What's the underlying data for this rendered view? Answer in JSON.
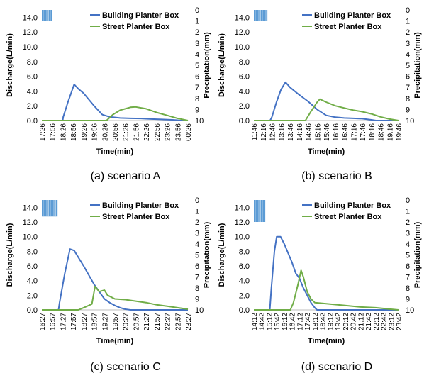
{
  "chart_data": [
    {
      "type": "line",
      "caption": "(a) scenario A",
      "ylabel": "Discharge(L/min)",
      "y2label": "Precipitation(mm)",
      "xlabel": "Time(min)",
      "ylim": [
        0,
        15
      ],
      "yticks": [
        "0.0",
        "2.0",
        "4.0",
        "6.0",
        "8.0",
        "10.0",
        "12.0",
        "14.0"
      ],
      "y2lim": [
        0,
        10
      ],
      "y2ticks": [
        "0",
        "1",
        "2",
        "3",
        "4",
        "5",
        "6",
        "7",
        "8",
        "9",
        "10"
      ],
      "x_categories": [
        "17:26",
        "17:56",
        "18:26",
        "18:56",
        "19:26",
        "19:56",
        "20:26",
        "20:56",
        "21:26",
        "21:56",
        "22:26",
        "22:56",
        "23:26",
        "23:56",
        "00:26"
      ],
      "legend": [
        "Building Planter Box",
        "Street Planter Box"
      ],
      "precipitation_bar": {
        "start_index": 0,
        "end_index": 1,
        "depth_mm": 1.0
      },
      "series": [
        {
          "name": "Building Planter Box",
          "color": "#4472c4",
          "points": [
            [
              0,
              0
            ],
            [
              2,
              0
            ],
            [
              2.05,
              0.5
            ],
            [
              2.5,
              2.5
            ],
            [
              3.1,
              4.9
            ],
            [
              3.5,
              4.3
            ],
            [
              4,
              3.7
            ],
            [
              5,
              2.0
            ],
            [
              5.8,
              0.8
            ],
            [
              6.5,
              0.5
            ],
            [
              7.5,
              0.35
            ],
            [
              8.5,
              0.3
            ],
            [
              9.5,
              0.28
            ],
            [
              10.5,
              0.2
            ],
            [
              11.5,
              0.15
            ],
            [
              12.5,
              0.1
            ],
            [
              13,
              0.05
            ],
            [
              13.2,
              0
            ],
            [
              14,
              0
            ]
          ]
        },
        {
          "name": "Street Planter Box",
          "color": "#70ad47",
          "points": [
            [
              0,
              0
            ],
            [
              6.2,
              0
            ],
            [
              6.8,
              0.8
            ],
            [
              7.5,
              1.4
            ],
            [
              8.5,
              1.8
            ],
            [
              9,
              1.85
            ],
            [
              10,
              1.6
            ],
            [
              11,
              1.1
            ],
            [
              12,
              0.7
            ],
            [
              13,
              0.3
            ],
            [
              14,
              0
            ]
          ]
        }
      ]
    },
    {
      "type": "line",
      "caption": "(b) scenario B",
      "ylabel": "Discharge(L/min)",
      "y2label": "Precipitation(mm)",
      "xlabel": "Time(min)",
      "ylim": [
        0,
        15
      ],
      "yticks": [
        "0.0",
        "2.0",
        "4.0",
        "6.0",
        "8.0",
        "10.0",
        "12.0",
        "14.0"
      ],
      "y2lim": [
        0,
        10
      ],
      "y2ticks": [
        "0",
        "1",
        "2",
        "3",
        "4",
        "5",
        "6",
        "7",
        "8",
        "9",
        "10"
      ],
      "x_categories": [
        "11:46",
        "12:16",
        "12:46",
        "13:16",
        "13:46",
        "14:16",
        "14:46",
        "15:16",
        "15:46",
        "16:16",
        "16:46",
        "17:16",
        "17:46",
        "18:16",
        "18:46",
        "19:16",
        "19:46"
      ],
      "legend": [
        "Building Planter Box",
        "Street Planter Box"
      ],
      "precipitation_bar": {
        "start_index": 0,
        "end_index": 1.5,
        "depth_mm": 1.0
      },
      "series": [
        {
          "name": "Building Planter Box",
          "color": "#4472c4",
          "points": [
            [
              0,
              0
            ],
            [
              1.8,
              0
            ],
            [
              2.0,
              0.5
            ],
            [
              2.5,
              2.5
            ],
            [
              3.0,
              4.2
            ],
            [
              3.5,
              5.2
            ],
            [
              4,
              4.5
            ],
            [
              5,
              3.5
            ],
            [
              6,
              2.6
            ],
            [
              7,
              1.5
            ],
            [
              8,
              0.7
            ],
            [
              9,
              0.45
            ],
            [
              10,
              0.35
            ],
            [
              11,
              0.3
            ],
            [
              12,
              0.25
            ],
            [
              13,
              0.1
            ],
            [
              13.5,
              0
            ],
            [
              16,
              0
            ]
          ]
        },
        {
          "name": "Street Planter Box",
          "color": "#70ad47",
          "points": [
            [
              0,
              0
            ],
            [
              5.7,
              0
            ],
            [
              6.3,
              1.2
            ],
            [
              7,
              2.5
            ],
            [
              7.3,
              2.9
            ],
            [
              8,
              2.5
            ],
            [
              9,
              2.0
            ],
            [
              10,
              1.7
            ],
            [
              11,
              1.4
            ],
            [
              12,
              1.2
            ],
            [
              13,
              0.9
            ],
            [
              14,
              0.5
            ],
            [
              15,
              0.2
            ],
            [
              16,
              0
            ]
          ]
        }
      ]
    },
    {
      "type": "line",
      "caption": "(c) scenario C",
      "ylabel": "Discharge(L/min)",
      "y2label": "Precipitation(mm)",
      "xlabel": "Time(min)",
      "ylim": [
        0,
        15
      ],
      "yticks": [
        "0.0",
        "2.0",
        "4.0",
        "6.0",
        "8.0",
        "10.0",
        "12.0",
        "14.0"
      ],
      "y2lim": [
        0,
        10
      ],
      "y2ticks": [
        "0",
        "1",
        "2",
        "3",
        "4",
        "5",
        "6",
        "7",
        "8",
        "9",
        "10"
      ],
      "x_categories": [
        "16:27",
        "16:57",
        "17:27",
        "17:57",
        "18:27",
        "18:57",
        "19:27",
        "19:57",
        "20:27",
        "20:57",
        "21:27",
        "21:57",
        "22:27",
        "22:57",
        "23:27"
      ],
      "legend": [
        "Building Planter Box",
        "Street Planter Box"
      ],
      "precipitation_bar": {
        "start_index": 0,
        "end_index": 1.5,
        "depth_mm": 1.5
      },
      "series": [
        {
          "name": "Building Planter Box",
          "color": "#4472c4",
          "points": [
            [
              0,
              0
            ],
            [
              1.6,
              0
            ],
            [
              1.7,
              1.0
            ],
            [
              2.2,
              5.0
            ],
            [
              2.7,
              8.3
            ],
            [
              3.1,
              8.1
            ],
            [
              4,
              6.0
            ],
            [
              5,
              3.5
            ],
            [
              5.5,
              2.5
            ],
            [
              6,
              1.5
            ],
            [
              6.5,
              1.0
            ],
            [
              7,
              0.6
            ],
            [
              7.5,
              0.3
            ],
            [
              8,
              0.1
            ],
            [
              8.5,
              0
            ],
            [
              14,
              0
            ]
          ]
        },
        {
          "name": "Street Planter Box",
          "color": "#70ad47",
          "points": [
            [
              0,
              0
            ],
            [
              3.5,
              0
            ],
            [
              4,
              0.3
            ],
            [
              4.8,
              0.8
            ],
            [
              5.1,
              3.2
            ],
            [
              5.5,
              2.5
            ],
            [
              6,
              2.7
            ],
            [
              6.3,
              2.0
            ],
            [
              7,
              1.5
            ],
            [
              8,
              1.4
            ],
            [
              9,
              1.2
            ],
            [
              10,
              1.0
            ],
            [
              11,
              0.7
            ],
            [
              12,
              0.5
            ],
            [
              13,
              0.3
            ],
            [
              14,
              0.1
            ]
          ]
        }
      ]
    },
    {
      "type": "line",
      "caption": "(d) scenario D",
      "ylabel": "Discharge(L/min)",
      "y2label": "Precipitation(mm)",
      "xlabel": "Time(min)",
      "ylim": [
        0,
        15
      ],
      "yticks": [
        "0.0",
        "2.0",
        "4.0",
        "6.0",
        "8.0",
        "10.0",
        "12.0",
        "14.0"
      ],
      "y2lim": [
        0,
        10
      ],
      "y2ticks": [
        "0",
        "1",
        "2",
        "3",
        "4",
        "5",
        "6",
        "7",
        "8",
        "9",
        "10"
      ],
      "x_categories": [
        "14:12",
        "14:42",
        "15:12",
        "15:42",
        "16:12",
        "16:42",
        "17:12",
        "17:42",
        "18:12",
        "18:42",
        "19:12",
        "19:42",
        "20:12",
        "20:42",
        "21:12",
        "21:42",
        "22:12",
        "22:42",
        "23:12",
        "23:42"
      ],
      "legend": [
        "Building Planter Box",
        "Street Planter Box"
      ],
      "precipitation_bar": {
        "start_index": 0,
        "end_index": 1.5,
        "depth_mm": 2.0
      },
      "series": [
        {
          "name": "Building Planter Box",
          "color": "#4472c4",
          "points": [
            [
              0,
              0
            ],
            [
              2.1,
              0
            ],
            [
              2.3,
              3.0
            ],
            [
              2.7,
              8.0
            ],
            [
              3.0,
              10.0
            ],
            [
              3.5,
              10.0
            ],
            [
              4,
              9.0
            ],
            [
              5,
              6.5
            ],
            [
              5.5,
              5.0
            ],
            [
              6,
              4.3
            ],
            [
              6.5,
              3.0
            ],
            [
              7,
              2.0
            ],
            [
              7.5,
              1.0
            ],
            [
              8,
              0.3
            ],
            [
              8.3,
              0
            ],
            [
              19,
              0
            ]
          ]
        },
        {
          "name": "Street Planter Box",
          "color": "#70ad47",
          "points": [
            [
              0,
              0
            ],
            [
              4.8,
              0
            ],
            [
              5.2,
              1.0
            ],
            [
              5.8,
              3.5
            ],
            [
              6.2,
              5.4
            ],
            [
              6.5,
              4.5
            ],
            [
              7,
              2.5
            ],
            [
              7.5,
              1.5
            ],
            [
              8,
              1.0
            ],
            [
              10,
              0.8
            ],
            [
              12,
              0.6
            ],
            [
              14,
              0.4
            ],
            [
              16,
              0.3
            ],
            [
              18,
              0.1
            ],
            [
              19,
              0
            ]
          ]
        }
      ]
    }
  ]
}
